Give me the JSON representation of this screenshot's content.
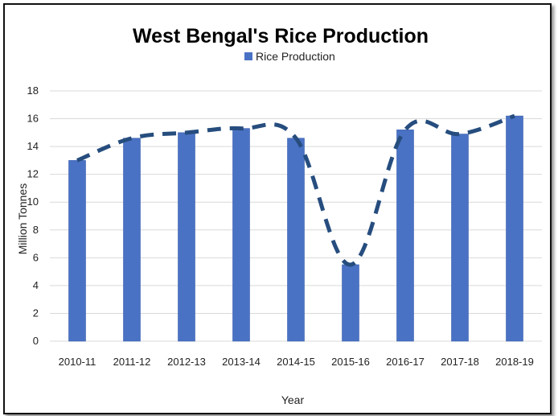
{
  "chart_data": {
    "type": "bar",
    "title": "West Bengal's Rice Production",
    "xlabel": "Year",
    "ylabel": "Million Tonnes",
    "categories": [
      "2010-11",
      "2011-12",
      "2012-13",
      "2013-14",
      "2014-15",
      "2015-16",
      "2016-17",
      "2017-18",
      "2018-19"
    ],
    "series": [
      {
        "name": "Rice Production",
        "values": [
          13.0,
          14.6,
          15.0,
          15.3,
          14.6,
          5.5,
          15.2,
          14.9,
          16.2
        ]
      }
    ],
    "trendline": {
      "style": "dashed",
      "smoothed": true
    },
    "ylim": [
      0,
      18
    ],
    "yticks": [
      "0",
      "2",
      "4",
      "6",
      "8",
      "10",
      "12",
      "14",
      "16",
      "18"
    ],
    "grid": true,
    "legend_position": "top",
    "colors": {
      "bar": "#4a72c4",
      "bar_edge": "#3a60ae",
      "trendline": "#264d7e",
      "grid": "#d9d9d9"
    }
  }
}
